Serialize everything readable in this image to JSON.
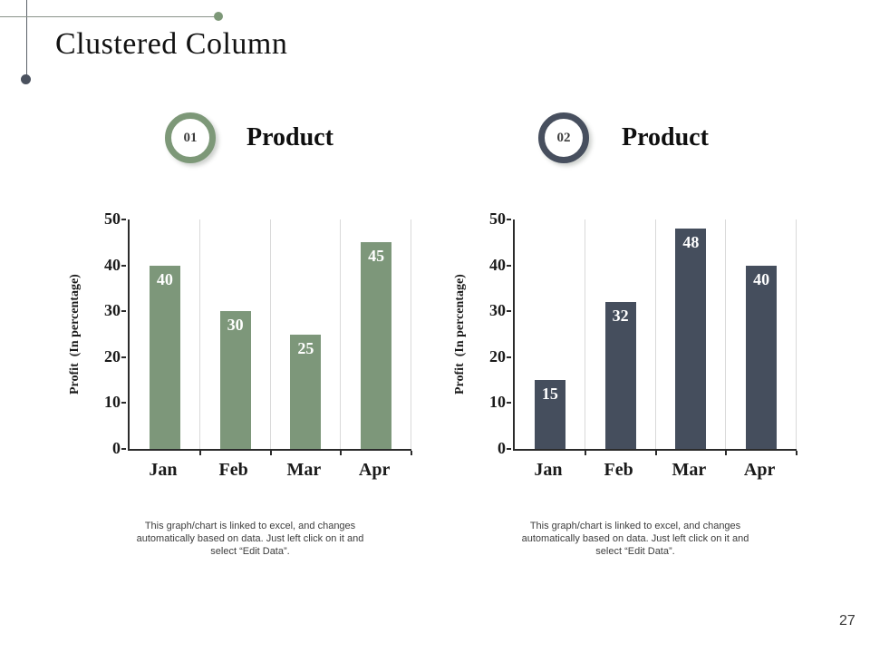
{
  "slide": {
    "title": "Clustered Column",
    "page_number": "27"
  },
  "headers": [
    {
      "badge": "01",
      "label": "Product"
    },
    {
      "badge": "02",
      "label": "Product"
    }
  ],
  "footnote": {
    "lines": [
      "This graph/chart is linked to excel,  and changes",
      "automatically based on data. Just left click on it and",
      "select “Edit Data”."
    ]
  },
  "colors": {
    "green_accent": "#7d977a",
    "dark_accent": "#454e5d",
    "axis": "#2b2b2b",
    "gridline": "#d9d9d9"
  },
  "chart_data": [
    {
      "type": "bar",
      "categories": [
        "Jan",
        "Feb",
        "Mar",
        "Apr"
      ],
      "values": [
        40,
        30,
        25,
        45
      ],
      "ylabel": "Profit  (In percentage)",
      "xlabel": "",
      "ylim": [
        0,
        50
      ],
      "yticks": [
        0,
        10,
        20,
        30,
        40,
        50
      ],
      "grid": "vertical-category-separators",
      "legend": "none",
      "bar_color": "#7d977a",
      "data_label_color": "#ffffff"
    },
    {
      "type": "bar",
      "categories": [
        "Jan",
        "Feb",
        "Mar",
        "Apr"
      ],
      "values": [
        15,
        32,
        48,
        40
      ],
      "ylabel": "Profit  (In percentage)",
      "xlabel": "",
      "ylim": [
        0,
        50
      ],
      "yticks": [
        0,
        10,
        20,
        30,
        40,
        50
      ],
      "grid": "vertical-category-separators",
      "legend": "none",
      "bar_color": "#454e5d",
      "data_label_color": "#ffffff"
    }
  ]
}
